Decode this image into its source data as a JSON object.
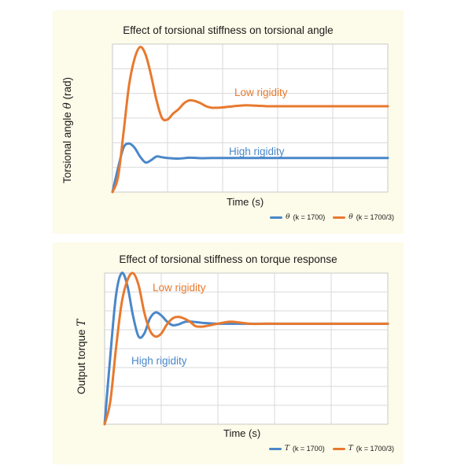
{
  "chart_data": [
    {
      "type": "line",
      "title": "Effect of torsional stiffness on torsional angle",
      "xlabel": "Time (s)",
      "ylabel": "Torsional angle",
      "ylabel_symbol": "θ",
      "ylabel_unit": "(rad)",
      "grid": true,
      "legend_placement": "bottom-right",
      "xlim": [
        0,
        1
      ],
      "ylim": [
        0,
        1
      ],
      "series": [
        {
          "name": "θ",
          "legend_symbol": "θ",
          "legend_text": "(k = 1700)",
          "annotation": "High rigidity",
          "color": "#4a87c9",
          "x": [
            0,
            0.02,
            0.04,
            0.06,
            0.08,
            0.1,
            0.12,
            0.14,
            0.16,
            0.18,
            0.2,
            0.24,
            0.28,
            0.32,
            0.36,
            0.4,
            0.5,
            0.6,
            0.7,
            0.8,
            0.9,
            1.0
          ],
          "values": [
            0,
            0.16,
            0.3,
            0.328,
            0.3,
            0.24,
            0.2,
            0.215,
            0.24,
            0.235,
            0.23,
            0.226,
            0.232,
            0.229,
            0.23,
            0.23,
            0.23,
            0.23,
            0.23,
            0.23,
            0.23,
            0.23
          ]
        },
        {
          "name": "θ",
          "legend_symbol": "θ",
          "legend_text": "(k = 1700/3)",
          "annotation": "Low rigidity",
          "color": "#e8792e",
          "x": [
            0,
            0.02,
            0.04,
            0.06,
            0.08,
            0.1,
            0.12,
            0.14,
            0.16,
            0.18,
            0.2,
            0.22,
            0.24,
            0.26,
            0.28,
            0.3,
            0.32,
            0.34,
            0.36,
            0.38,
            0.4,
            0.44,
            0.48,
            0.52,
            0.56,
            0.6,
            0.7,
            0.8,
            0.9,
            1.0
          ],
          "values": [
            0,
            0.1,
            0.4,
            0.72,
            0.9,
            0.98,
            0.93,
            0.79,
            0.62,
            0.5,
            0.49,
            0.53,
            0.56,
            0.6,
            0.62,
            0.615,
            0.6,
            0.58,
            0.57,
            0.57,
            0.572,
            0.58,
            0.586,
            0.584,
            0.58,
            0.58,
            0.58,
            0.58,
            0.58,
            0.58
          ]
        }
      ]
    },
    {
      "type": "line",
      "title": "Effect of torsional stiffness on torque response",
      "xlabel": "Time (s)",
      "ylabel": "Output torque",
      "ylabel_symbol": "T",
      "grid": true,
      "legend_placement": "bottom-right",
      "xlim": [
        0,
        1
      ],
      "ylim": [
        0,
        1
      ],
      "series": [
        {
          "name": "T",
          "legend_symbol": "T",
          "legend_text": "(k = 1700)",
          "annotation": "High rigidity",
          "color": "#4a87c9",
          "x": [
            0,
            0.02,
            0.04,
            0.06,
            0.08,
            0.1,
            0.12,
            0.14,
            0.16,
            0.18,
            0.2,
            0.22,
            0.24,
            0.26,
            0.28,
            0.3,
            0.35,
            0.4,
            0.5,
            0.6,
            0.7,
            0.8,
            0.9,
            1.0
          ],
          "values": [
            0,
            0.45,
            0.85,
            1.0,
            0.92,
            0.72,
            0.58,
            0.6,
            0.7,
            0.74,
            0.72,
            0.68,
            0.655,
            0.66,
            0.675,
            0.68,
            0.67,
            0.665,
            0.665,
            0.665,
            0.665,
            0.665,
            0.665,
            0.665
          ]
        },
        {
          "name": "T",
          "legend_symbol": "T",
          "legend_text": "(k = 1700/3)",
          "annotation": "Low rigidity",
          "color": "#e8792e",
          "x": [
            0,
            0.02,
            0.04,
            0.06,
            0.08,
            0.1,
            0.12,
            0.14,
            0.16,
            0.18,
            0.2,
            0.22,
            0.24,
            0.26,
            0.28,
            0.3,
            0.32,
            0.34,
            0.36,
            0.4,
            0.44,
            0.48,
            0.52,
            0.56,
            0.6,
            0.7,
            0.8,
            0.9,
            1.0
          ],
          "values": [
            0,
            0.15,
            0.5,
            0.8,
            0.95,
            1.0,
            0.92,
            0.74,
            0.62,
            0.58,
            0.6,
            0.66,
            0.7,
            0.71,
            0.7,
            0.68,
            0.65,
            0.645,
            0.65,
            0.665,
            0.678,
            0.672,
            0.664,
            0.665,
            0.665,
            0.665,
            0.665,
            0.665,
            0.665
          ]
        }
      ]
    }
  ]
}
